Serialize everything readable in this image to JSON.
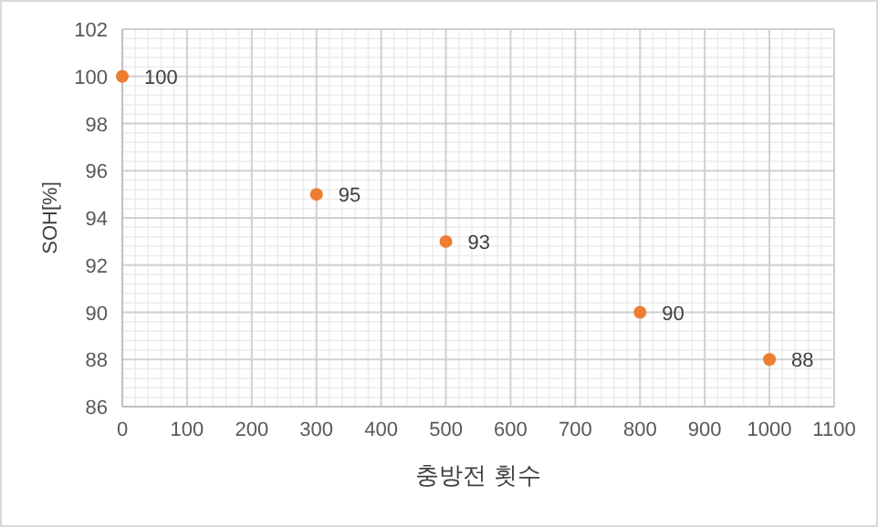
{
  "chart_data": {
    "type": "scatter",
    "xlabel": "충방전 횟수",
    "ylabel": "SOH[%]",
    "x": [
      0,
      300,
      500,
      800,
      1000
    ],
    "values": [
      100,
      95,
      93,
      90,
      88
    ],
    "color": "#ed7d31",
    "marker": "circle",
    "data_labels": true,
    "grid": true,
    "xlim": [
      0,
      1100
    ],
    "xticks": [
      0,
      100,
      200,
      300,
      400,
      500,
      600,
      700,
      800,
      900,
      1000,
      1100
    ],
    "ylim": [
      86,
      102
    ],
    "yticks": [
      86,
      88,
      90,
      92,
      94,
      96,
      98,
      100,
      102
    ]
  }
}
